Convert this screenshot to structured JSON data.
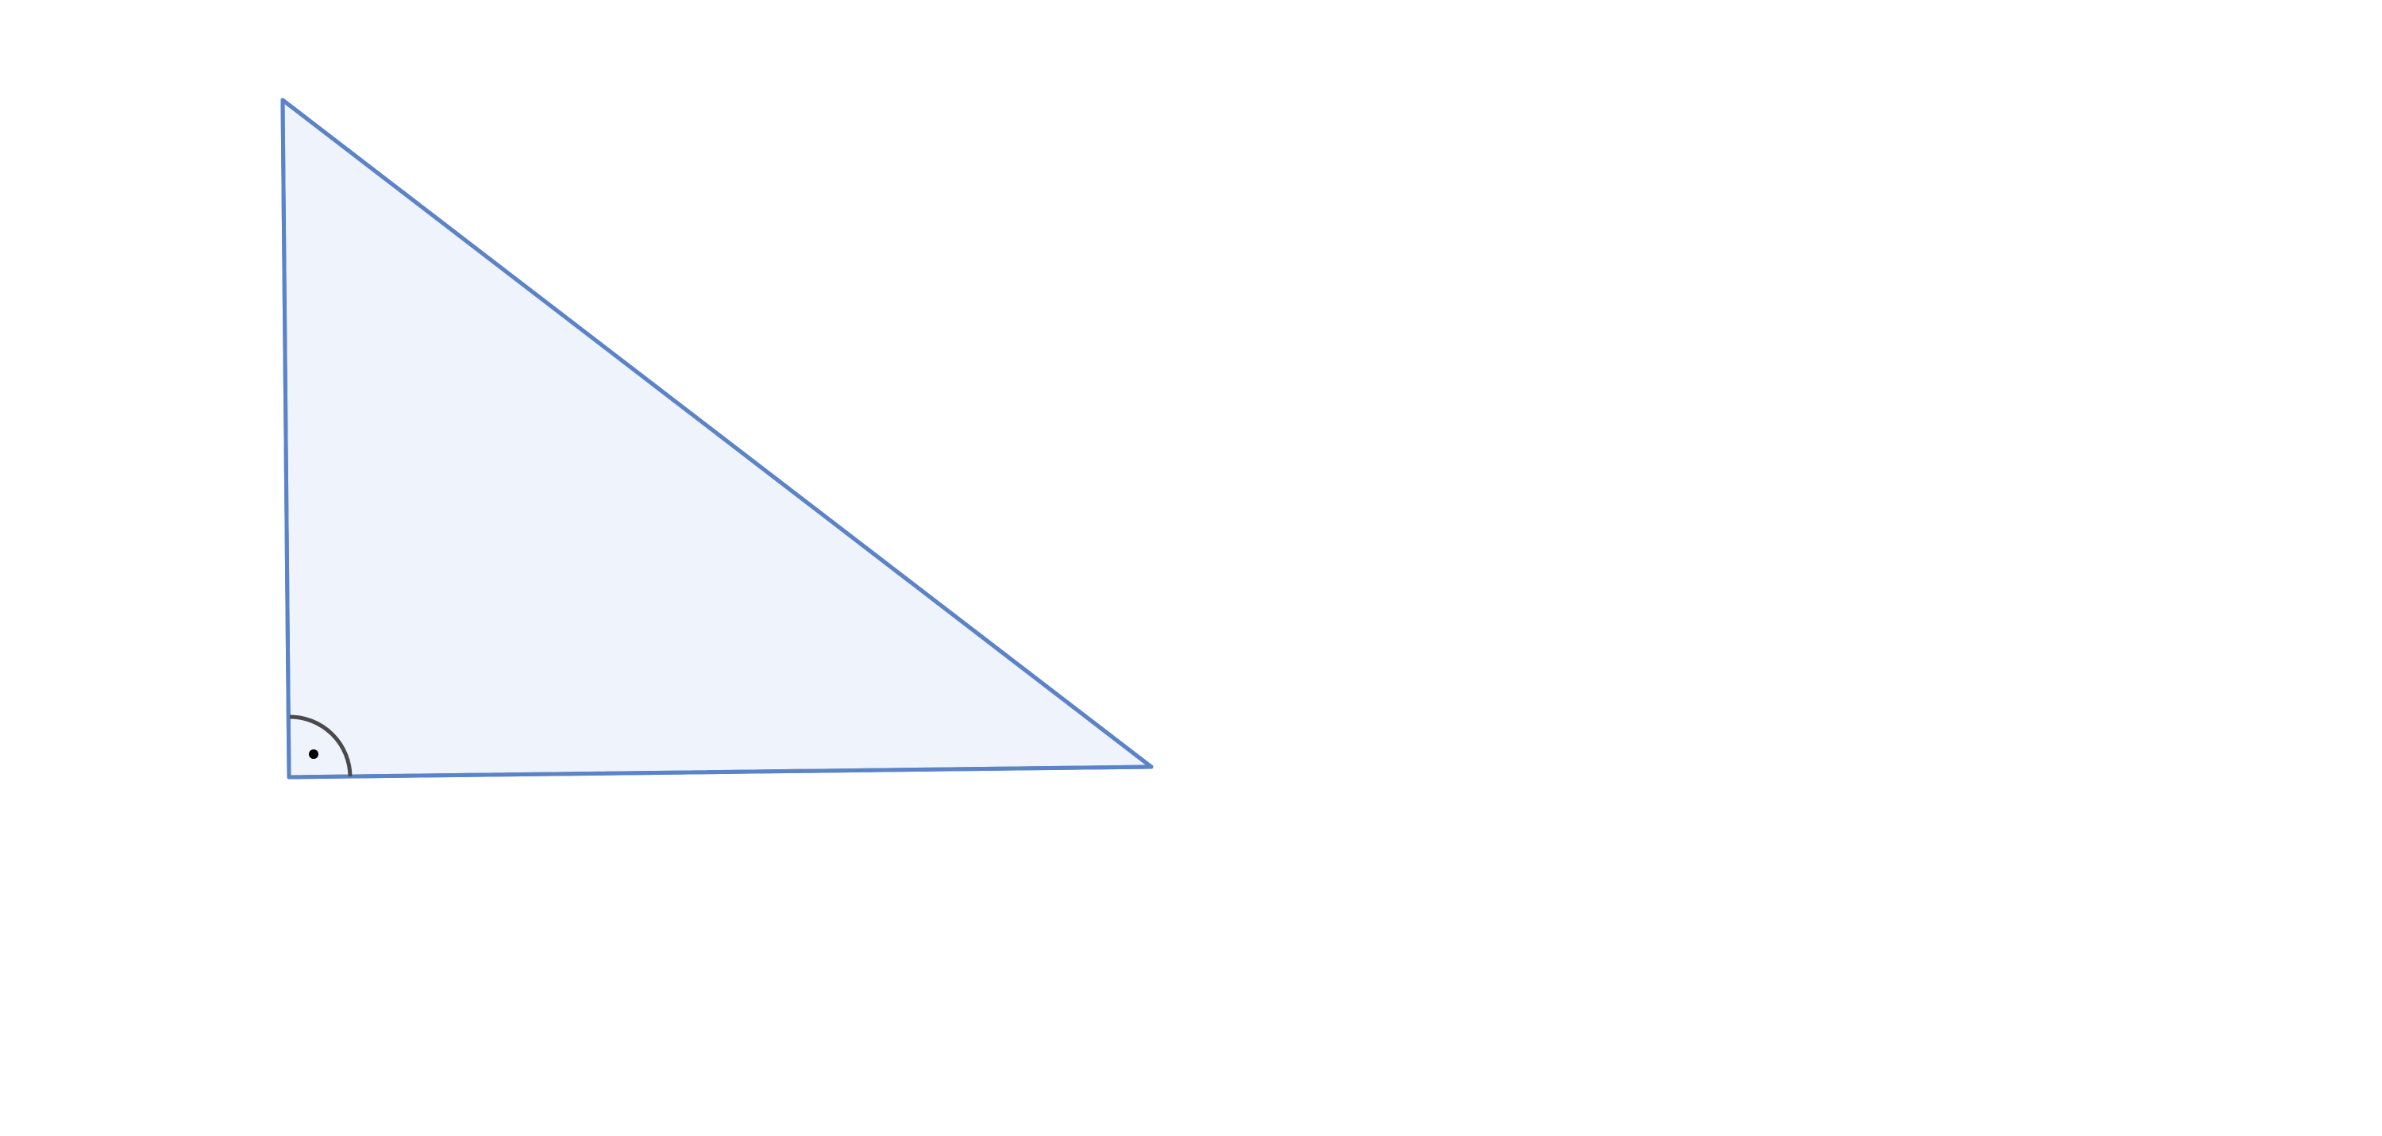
{
  "diagram": {
    "shape": "right-triangle",
    "right_angle_vertex": "bottom-left",
    "right_angle_marker": "arc-with-dot",
    "colors": {
      "triangle_fill": "#EEF3FC",
      "triangle_stroke": "#5B84C8",
      "angle_marker_stroke": "#4A4A4A",
      "angle_marker_dot": "#000000",
      "background": "#FFFFFF"
    }
  }
}
